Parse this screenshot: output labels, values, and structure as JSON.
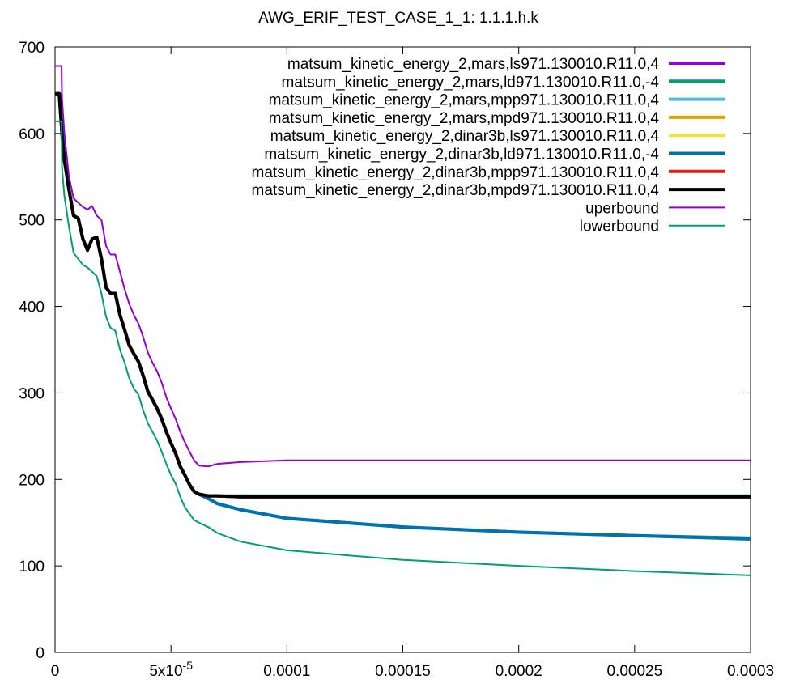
{
  "chart_data": {
    "type": "line",
    "title": "AWG_ERIF_TEST_CASE_1_1: 1.1.1.h.k",
    "xlabel": "",
    "ylabel": "",
    "xlim": [
      0,
      0.0003
    ],
    "ylim": [
      0,
      700
    ],
    "grid": false,
    "legend_position": "top-right",
    "x_ticks": [
      {
        "value": 0,
        "label": "0",
        "sup": ""
      },
      {
        "value": 5e-05,
        "label": "5x10",
        "sup": "-5"
      },
      {
        "value": 0.0001,
        "label": "0.0001",
        "sup": ""
      },
      {
        "value": 0.00015,
        "label": "0.00015",
        "sup": ""
      },
      {
        "value": 0.0002,
        "label": "0.0002",
        "sup": ""
      },
      {
        "value": 0.00025,
        "label": "0.00025",
        "sup": ""
      },
      {
        "value": 0.0003,
        "label": "0.0003",
        "sup": ""
      }
    ],
    "y_ticks": [
      {
        "value": 0,
        "label": "0"
      },
      {
        "value": 100,
        "label": "100"
      },
      {
        "value": 200,
        "label": "200"
      },
      {
        "value": 300,
        "label": "300"
      },
      {
        "value": 400,
        "label": "400"
      },
      {
        "value": 500,
        "label": "500"
      },
      {
        "value": 600,
        "label": "600"
      },
      {
        "value": 700,
        "label": "700"
      }
    ],
    "series": [
      {
        "name": "matsum_kinetic_energy_2,mars,ls971.130010.R11.0,4",
        "color": "#9400d3",
        "width": 4,
        "x": [
          0,
          1.8e-06,
          3e-06,
          4e-06,
          6e-06,
          8e-06,
          1e-05,
          1.2e-05,
          1.4e-05,
          1.6e-05,
          1.8e-05,
          2e-05,
          2.2e-05,
          2.4e-05,
          2.6e-05,
          2.8e-05,
          3e-05,
          3.2e-05,
          3.4e-05,
          3.6e-05,
          3.8e-05,
          4e-05,
          4.2e-05,
          4.4e-05,
          4.6e-05,
          4.8e-05,
          5e-05,
          5.2e-05,
          5.4e-05,
          5.6e-05,
          5.8e-05,
          6e-05,
          6.2e-05,
          6.6e-05,
          7e-05,
          8e-05,
          0.0001,
          0.00015,
          0.0002,
          0.00025,
          0.0003
        ],
        "y": [
          646,
          646,
          600,
          570,
          535,
          505,
          502,
          478,
          465,
          478,
          480,
          455,
          422,
          415,
          415,
          390,
          373,
          355,
          345,
          336,
          320,
          302,
          292,
          282,
          270,
          255,
          242,
          230,
          215,
          205,
          194,
          186,
          183,
          181,
          181,
          180,
          180,
          180,
          180,
          180,
          180
        ]
      },
      {
        "name": "matsum_kinetic_energy_2,mars,ld971.130010.R11.0,-4",
        "color": "#009e73",
        "width": 4,
        "x": [
          0,
          1.8e-06,
          3e-06,
          4e-06,
          6e-06,
          8e-06,
          1e-05,
          1.2e-05,
          1.4e-05,
          1.6e-05,
          1.8e-05,
          2e-05,
          2.2e-05,
          2.4e-05,
          2.6e-05,
          2.8e-05,
          3e-05,
          3.2e-05,
          3.4e-05,
          3.6e-05,
          3.8e-05,
          4e-05,
          4.2e-05,
          4.4e-05,
          4.6e-05,
          4.8e-05,
          5e-05,
          5.2e-05,
          5.4e-05,
          5.6e-05,
          5.8e-05,
          6e-05,
          6.2e-05,
          6.6e-05,
          7e-05,
          8e-05,
          0.0001,
          0.00015,
          0.0002,
          0.00025,
          0.0003
        ],
        "y": [
          646,
          646,
          600,
          570,
          535,
          505,
          502,
          478,
          465,
          478,
          480,
          455,
          422,
          415,
          415,
          390,
          373,
          355,
          345,
          336,
          320,
          302,
          292,
          282,
          270,
          255,
          242,
          230,
          215,
          205,
          194,
          186,
          183,
          178,
          172,
          165,
          155,
          145,
          139,
          135,
          132
        ]
      },
      {
        "name": "matsum_kinetic_energy_2,mars,mpp971.130010.R11.0,4",
        "color": "#56b4e9",
        "width": 4,
        "x": [
          0,
          1.8e-06,
          3e-06,
          4e-06,
          6e-06,
          8e-06,
          1e-05,
          1.2e-05,
          1.4e-05,
          1.6e-05,
          1.8e-05,
          2e-05,
          2.2e-05,
          2.4e-05,
          2.6e-05,
          2.8e-05,
          3e-05,
          3.2e-05,
          3.4e-05,
          3.6e-05,
          3.8e-05,
          4e-05,
          4.2e-05,
          4.4e-05,
          4.6e-05,
          4.8e-05,
          5e-05,
          5.2e-05,
          5.4e-05,
          5.6e-05,
          5.8e-05,
          6e-05,
          6.2e-05,
          6.6e-05,
          7e-05,
          8e-05,
          0.0001,
          0.00015,
          0.0002,
          0.00025,
          0.0003
        ],
        "y": [
          646,
          646,
          600,
          570,
          535,
          505,
          502,
          478,
          465,
          478,
          480,
          455,
          422,
          415,
          415,
          390,
          373,
          355,
          345,
          336,
          320,
          302,
          292,
          282,
          270,
          255,
          242,
          230,
          215,
          205,
          194,
          186,
          183,
          181,
          181,
          181,
          181,
          181,
          181,
          181,
          181
        ]
      },
      {
        "name": "matsum_kinetic_energy_2,mars,mpd971.130010.R11.0,4",
        "color": "#e69f00",
        "width": 4,
        "x": [
          0,
          1.8e-06,
          3e-06,
          4e-06,
          6e-06,
          8e-06,
          1e-05,
          1.2e-05,
          1.4e-05,
          1.6e-05,
          1.8e-05,
          2e-05,
          2.2e-05,
          2.4e-05,
          2.6e-05,
          2.8e-05,
          3e-05,
          3.2e-05,
          3.4e-05,
          3.6e-05,
          3.8e-05,
          4e-05,
          4.2e-05,
          4.4e-05,
          4.6e-05,
          4.8e-05,
          5e-05,
          5.2e-05,
          5.4e-05,
          5.6e-05,
          5.8e-05,
          6e-05,
          6.2e-05,
          6.6e-05,
          7e-05,
          8e-05,
          0.0001,
          0.00015,
          0.0002,
          0.00025,
          0.0003
        ],
        "y": [
          646,
          646,
          600,
          570,
          535,
          505,
          502,
          478,
          465,
          478,
          480,
          455,
          422,
          415,
          415,
          390,
          373,
          355,
          345,
          336,
          320,
          302,
          292,
          282,
          270,
          255,
          242,
          230,
          215,
          205,
          194,
          186,
          183,
          181,
          181,
          180,
          180,
          180,
          180,
          180,
          180
        ]
      },
      {
        "name": "matsum_kinetic_energy_2,dinar3b,ls971.130010.R11.0,4",
        "color": "#f0e442",
        "width": 4,
        "x": [
          0,
          1.8e-06,
          3e-06,
          4e-06,
          6e-06,
          8e-06,
          1e-05,
          1.2e-05,
          1.4e-05,
          1.6e-05,
          1.8e-05,
          2e-05,
          2.2e-05,
          2.4e-05,
          2.6e-05,
          2.8e-05,
          3e-05,
          3.2e-05,
          3.4e-05,
          3.6e-05,
          3.8e-05,
          4e-05,
          4.2e-05,
          4.4e-05,
          4.6e-05,
          4.8e-05,
          5e-05,
          5.2e-05,
          5.4e-05,
          5.6e-05,
          5.8e-05,
          6e-05,
          6.2e-05,
          6.6e-05,
          7e-05,
          8e-05,
          0.0001,
          0.00015,
          0.0002,
          0.00025,
          0.0003
        ],
        "y": [
          646,
          646,
          600,
          570,
          535,
          505,
          502,
          478,
          465,
          478,
          480,
          455,
          422,
          415,
          415,
          390,
          373,
          355,
          345,
          336,
          320,
          302,
          292,
          282,
          270,
          255,
          242,
          230,
          215,
          205,
          194,
          186,
          183,
          181,
          181,
          180,
          180,
          180,
          180,
          180,
          180
        ]
      },
      {
        "name": "matsum_kinetic_energy_2,dinar3b,ld971.130010.R11.0,-4",
        "color": "#0072b2",
        "width": 4,
        "x": [
          0,
          1.8e-06,
          3e-06,
          4e-06,
          6e-06,
          8e-06,
          1e-05,
          1.2e-05,
          1.4e-05,
          1.6e-05,
          1.8e-05,
          2e-05,
          2.2e-05,
          2.4e-05,
          2.6e-05,
          2.8e-05,
          3e-05,
          3.2e-05,
          3.4e-05,
          3.6e-05,
          3.8e-05,
          4e-05,
          4.2e-05,
          4.4e-05,
          4.6e-05,
          4.8e-05,
          5e-05,
          5.2e-05,
          5.4e-05,
          5.6e-05,
          5.8e-05,
          6e-05,
          6.2e-05,
          6.6e-05,
          7e-05,
          8e-05,
          0.0001,
          0.00015,
          0.0002,
          0.00025,
          0.0003
        ],
        "y": [
          646,
          646,
          600,
          570,
          535,
          505,
          502,
          478,
          465,
          478,
          480,
          455,
          422,
          415,
          415,
          390,
          373,
          355,
          345,
          336,
          320,
          302,
          292,
          282,
          270,
          255,
          242,
          230,
          215,
          205,
          194,
          186,
          183,
          178,
          172,
          165,
          155,
          145,
          139,
          135,
          131
        ]
      },
      {
        "name": "matsum_kinetic_energy_2,dinar3b,mpp971.130010.R11.0,4",
        "color": "#e51e10",
        "width": 4,
        "x": [
          0,
          1.8e-06,
          3e-06,
          4e-06,
          6e-06,
          8e-06,
          1e-05,
          1.2e-05,
          1.4e-05,
          1.6e-05,
          1.8e-05,
          2e-05,
          2.2e-05,
          2.4e-05,
          2.6e-05,
          2.8e-05,
          3e-05,
          3.2e-05,
          3.4e-05,
          3.6e-05,
          3.8e-05,
          4e-05,
          4.2e-05,
          4.4e-05,
          4.6e-05,
          4.8e-05,
          5e-05,
          5.2e-05,
          5.4e-05,
          5.6e-05,
          5.8e-05,
          6e-05,
          6.2e-05,
          6.6e-05,
          7e-05,
          8e-05,
          0.0001,
          0.00015,
          0.0002,
          0.00025,
          0.0003
        ],
        "y": [
          646,
          646,
          600,
          570,
          535,
          505,
          502,
          478,
          465,
          478,
          480,
          455,
          422,
          415,
          415,
          390,
          373,
          355,
          345,
          336,
          320,
          302,
          292,
          282,
          270,
          255,
          242,
          230,
          215,
          205,
          194,
          186,
          183,
          181,
          181,
          180,
          180,
          180,
          180,
          180,
          180
        ]
      },
      {
        "name": "matsum_kinetic_energy_2,dinar3b,mpd971.130010.R11.0,4",
        "color": "#000000",
        "width": 4,
        "x": [
          0,
          1.8e-06,
          3e-06,
          4e-06,
          6e-06,
          8e-06,
          1e-05,
          1.2e-05,
          1.4e-05,
          1.6e-05,
          1.8e-05,
          2e-05,
          2.2e-05,
          2.4e-05,
          2.6e-05,
          2.8e-05,
          3e-05,
          3.2e-05,
          3.4e-05,
          3.6e-05,
          3.8e-05,
          4e-05,
          4.2e-05,
          4.4e-05,
          4.6e-05,
          4.8e-05,
          5e-05,
          5.2e-05,
          5.4e-05,
          5.6e-05,
          5.8e-05,
          6e-05,
          6.2e-05,
          6.6e-05,
          7e-05,
          8e-05,
          0.0001,
          0.00015,
          0.0002,
          0.00025,
          0.0003
        ],
        "y": [
          646,
          646,
          600,
          570,
          535,
          505,
          502,
          478,
          465,
          478,
          480,
          455,
          422,
          415,
          415,
          390,
          373,
          355,
          345,
          336,
          320,
          302,
          292,
          282,
          270,
          255,
          242,
          230,
          215,
          205,
          194,
          186,
          183,
          181,
          181,
          180,
          180,
          180,
          180,
          180,
          180
        ]
      },
      {
        "name": "uperbound",
        "color": "#9400d3",
        "width": 2,
        "x": [
          0,
          2.8e-06,
          3e-06,
          4e-06,
          6e-06,
          8e-06,
          1e-05,
          1.2e-05,
          1.4e-05,
          1.6e-05,
          1.8e-05,
          2e-05,
          2.2e-05,
          2.4e-05,
          2.6e-05,
          2.8e-05,
          3e-05,
          3.2e-05,
          3.4e-05,
          3.6e-05,
          3.8e-05,
          4e-05,
          4.2e-05,
          4.4e-05,
          4.6e-05,
          4.8e-05,
          5e-05,
          5.2e-05,
          5.4e-05,
          5.6e-05,
          5.8e-05,
          6e-05,
          6.2e-05,
          6.6e-05,
          7e-05,
          8e-05,
          0.0001,
          0.00015,
          0.0002,
          0.00025,
          0.0003
        ],
        "y": [
          678,
          678,
          640,
          600,
          550,
          525,
          520,
          515,
          512,
          516,
          505,
          500,
          470,
          460,
          460,
          440,
          420,
          403,
          390,
          380,
          365,
          347,
          335,
          325,
          312,
          295,
          282,
          270,
          255,
          243,
          232,
          222,
          216,
          215,
          218,
          220,
          222,
          222,
          222,
          222,
          222
        ]
      },
      {
        "name": "lowerbound",
        "color": "#009e73",
        "width": 2,
        "x": [
          0,
          2.8e-06,
          3e-06,
          4e-06,
          6e-06,
          8e-06,
          1e-05,
          1.2e-05,
          1.4e-05,
          1.6e-05,
          1.8e-05,
          2e-05,
          2.2e-05,
          2.4e-05,
          2.6e-05,
          2.8e-05,
          3e-05,
          3.2e-05,
          3.4e-05,
          3.6e-05,
          3.8e-05,
          4e-05,
          4.2e-05,
          4.4e-05,
          4.6e-05,
          4.8e-05,
          5e-05,
          5.2e-05,
          5.4e-05,
          5.6e-05,
          5.8e-05,
          6e-05,
          6.2e-05,
          6.6e-05,
          7e-05,
          8e-05,
          0.0001,
          0.00015,
          0.0002,
          0.00025,
          0.0003
        ],
        "y": [
          614,
          614,
          560,
          528,
          492,
          462,
          455,
          448,
          445,
          440,
          435,
          415,
          388,
          375,
          372,
          350,
          335,
          317,
          305,
          298,
          280,
          265,
          255,
          245,
          232,
          218,
          205,
          195,
          180,
          168,
          160,
          153,
          150,
          145,
          138,
          128,
          118,
          107,
          100,
          94,
          89
        ]
      }
    ]
  }
}
